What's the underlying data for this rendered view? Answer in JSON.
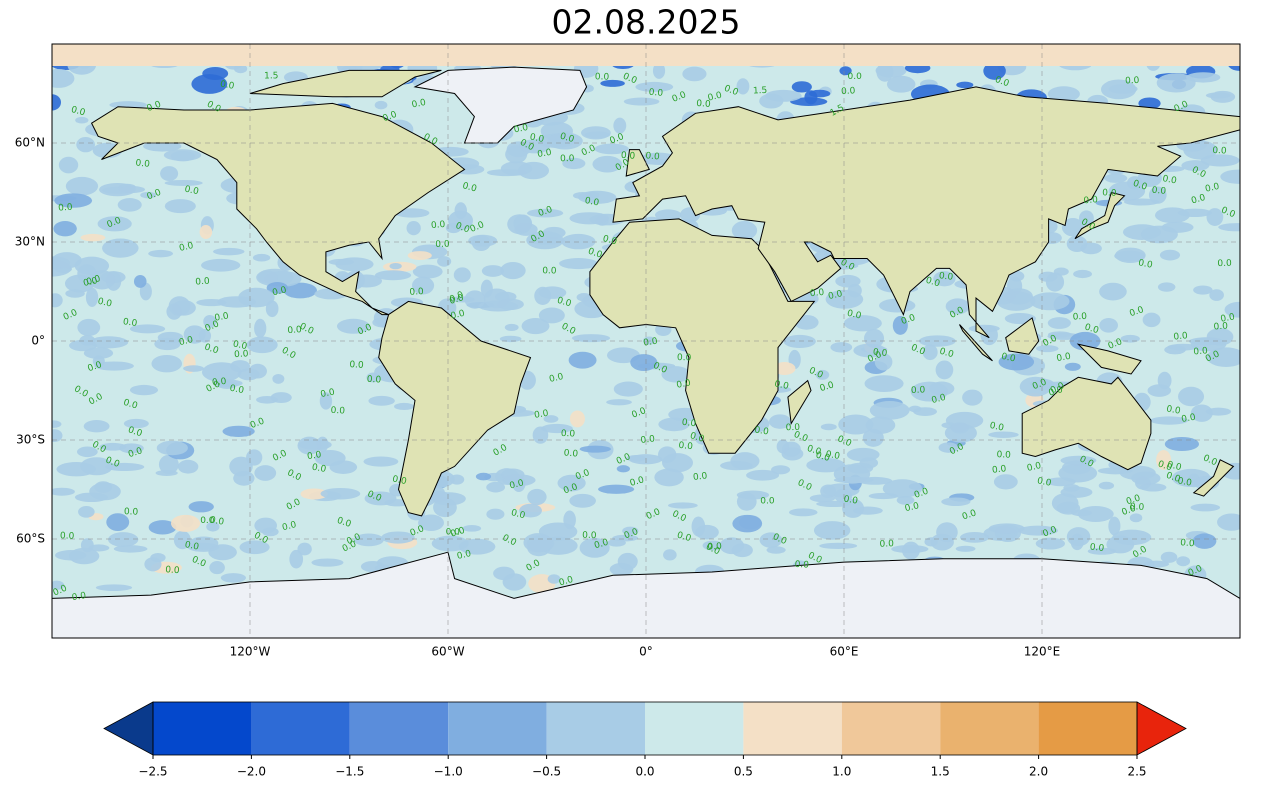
{
  "chart_data": {
    "type": "map",
    "title": "02.08.2025",
    "xlim": [
      -180,
      180
    ],
    "ylim": [
      -90,
      90
    ],
    "xticks": [
      {
        "value": -120,
        "label": "120°W"
      },
      {
        "value": -60,
        "label": "60°W"
      },
      {
        "value": 0,
        "label": "0°"
      },
      {
        "value": 60,
        "label": "60°E"
      },
      {
        "value": 120,
        "label": "120°E"
      }
    ],
    "yticks": [
      {
        "value": 60,
        "label": "60°N"
      },
      {
        "value": 30,
        "label": "30°N"
      },
      {
        "value": 0,
        "label": "0°"
      },
      {
        "value": -30,
        "label": "30°S"
      },
      {
        "value": -60,
        "label": "60°S"
      }
    ],
    "grid": true,
    "contour_labels": [
      "0.0",
      "1.5"
    ],
    "colorbar": {
      "lim": [
        -2.5,
        2.5
      ],
      "ticks": [
        {
          "value": -2.5,
          "label": "−2.5"
        },
        {
          "value": -2,
          "label": "−2.0"
        },
        {
          "value": -1.5,
          "label": "−1.5"
        },
        {
          "value": -1,
          "label": "−1.0"
        },
        {
          "value": -0.5,
          "label": "−0.5"
        },
        {
          "value": 0,
          "label": "0.0"
        },
        0.5,
        {
          "value": 1,
          "label": "1.0"
        },
        1.5,
        {
          "value": 2,
          "label": "2.0"
        },
        2.5
      ],
      "colors": [
        "#0448cc",
        "#2e6bd6",
        "#5a8ddb",
        "#80aee0",
        "#a8cce6",
        "#cde9ea",
        "#f4e0c6",
        "#f0c89a",
        "#eab26e",
        "#e59b45"
      ],
      "under_color": "#0a3a8c",
      "over_color": "#e8240c"
    }
  }
}
